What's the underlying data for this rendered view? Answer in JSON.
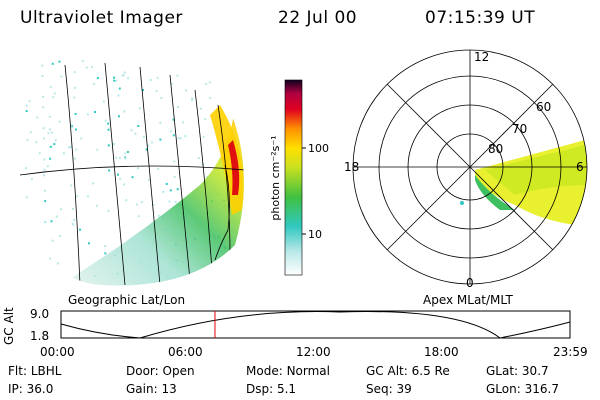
{
  "header": {
    "instrument": "Ultraviolet Imager",
    "date": "22 Jul 00",
    "time": "07:15:39 UT"
  },
  "colorbar": {
    "label": "photon cm⁻²s⁻¹",
    "ticks": [
      "100",
      "10"
    ]
  },
  "left_panel": {
    "caption": "Geographic Lat/Lon"
  },
  "right_panel": {
    "caption": "Apex MLat/MLT",
    "mlt_labels": {
      "top": "12",
      "left": "18",
      "right": "6",
      "bottom": "0"
    },
    "lat_labels": [
      "60",
      "70",
      "80"
    ]
  },
  "alt_plot": {
    "ylabel": "GC Alt",
    "yticks": [
      "9.0",
      "1.8"
    ],
    "xticks": [
      "00:00",
      "06:00",
      "12:00",
      "18:00",
      "23:59"
    ],
    "current_time_hours": 7.26,
    "marker_color": "#e00000"
  },
  "info": {
    "row1": [
      {
        "key": "Flt:",
        "value": "LBHL"
      },
      {
        "key": "Door:",
        "value": "Open"
      },
      {
        "key": "Mode:",
        "value": "Normal"
      },
      {
        "key": "GC Alt:",
        "value": "6.5 Re"
      },
      {
        "key": "GLat:",
        "value": "30.7"
      }
    ],
    "row2": [
      {
        "key": "IP:",
        "value": "36.0"
      },
      {
        "key": "Gain:",
        "value": "13"
      },
      {
        "key": "Dsp:",
        "value": "5.1"
      },
      {
        "key": "Seq:",
        "value": "39"
      },
      {
        "key": "GLon:",
        "value": "316.7"
      }
    ]
  }
}
